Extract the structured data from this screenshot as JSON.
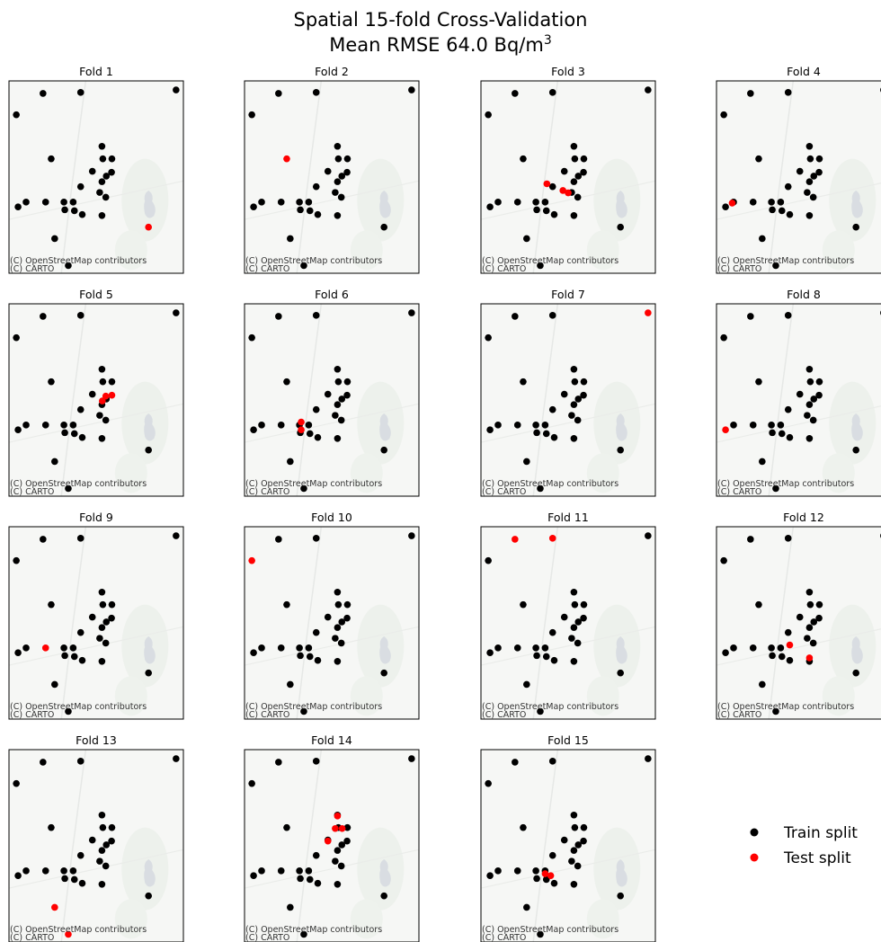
{
  "figure": {
    "title_line1": "Spatial 15-fold Cross-Validation",
    "title_line2_prefix": "Mean RMSE 64.0 Bq/m",
    "title_line2_sup": "3"
  },
  "map": {
    "attribution_line1": "(C) OpenStreetMap contributors",
    "attribution_line2": "(C) CARTO"
  },
  "legend": {
    "train_label": "Train split",
    "test_label": "Test split",
    "train_color": "#000000",
    "test_color": "#ff0000"
  },
  "chart_data": {
    "type": "scatter",
    "description_units": "points in normalized map coordinates (0-1 of panel extent)",
    "panels": [
      "Fold 1",
      "Fold 2",
      "Fold 3",
      "Fold 4",
      "Fold 5",
      "Fold 6",
      "Fold 7",
      "Fold 8",
      "Fold 9",
      "Fold 10",
      "Fold 11",
      "Fold 12",
      "Fold 13",
      "Fold 14",
      "Fold 15"
    ],
    "sites": [
      {
        "x": 0.958,
        "y": 0.953
      },
      {
        "x": 0.195,
        "y": 0.935
      },
      {
        "x": 0.411,
        "y": 0.94
      },
      {
        "x": 0.042,
        "y": 0.824
      },
      {
        "x": 0.533,
        "y": 0.66
      },
      {
        "x": 0.242,
        "y": 0.595
      },
      {
        "x": 0.538,
        "y": 0.595
      },
      {
        "x": 0.59,
        "y": 0.595
      },
      {
        "x": 0.588,
        "y": 0.525
      },
      {
        "x": 0.558,
        "y": 0.505
      },
      {
        "x": 0.478,
        "y": 0.53
      },
      {
        "x": 0.533,
        "y": 0.476
      },
      {
        "x": 0.411,
        "y": 0.45
      },
      {
        "x": 0.52,
        "y": 0.42
      },
      {
        "x": 0.555,
        "y": 0.395
      },
      {
        "x": 0.315,
        "y": 0.37
      },
      {
        "x": 0.368,
        "y": 0.37
      },
      {
        "x": 0.098,
        "y": 0.37
      },
      {
        "x": 0.21,
        "y": 0.37
      },
      {
        "x": 0.052,
        "y": 0.345
      },
      {
        "x": 0.32,
        "y": 0.33
      },
      {
        "x": 0.375,
        "y": 0.325
      },
      {
        "x": 0.42,
        "y": 0.305
      },
      {
        "x": 0.533,
        "y": 0.3
      },
      {
        "x": 0.8,
        "y": 0.24
      },
      {
        "x": 0.262,
        "y": 0.18
      },
      {
        "x": 0.34,
        "y": 0.04
      }
    ],
    "test_sites_by_fold": [
      [
        {
          "x": 0.8,
          "y": 0.24
        }
      ],
      [
        {
          "x": 0.242,
          "y": 0.595
        }
      ],
      [
        {
          "x": 0.378,
          "y": 0.465
        },
        {
          "x": 0.47,
          "y": 0.43
        },
        {
          "x": 0.5,
          "y": 0.418
        }
      ],
      [
        {
          "x": 0.09,
          "y": 0.365
        }
      ],
      [
        {
          "x": 0.555,
          "y": 0.52
        },
        {
          "x": 0.59,
          "y": 0.525
        },
        {
          "x": 0.535,
          "y": 0.495
        }
      ],
      [
        {
          "x": 0.325,
          "y": 0.385
        },
        {
          "x": 0.325,
          "y": 0.345
        }
      ],
      [
        {
          "x": 0.958,
          "y": 0.953
        }
      ],
      [
        {
          "x": 0.052,
          "y": 0.345
        }
      ],
      [
        {
          "x": 0.21,
          "y": 0.37
        }
      ],
      [
        {
          "x": 0.042,
          "y": 0.824
        }
      ],
      [
        {
          "x": 0.195,
          "y": 0.935
        },
        {
          "x": 0.411,
          "y": 0.94
        }
      ],
      [
        {
          "x": 0.42,
          "y": 0.385
        },
        {
          "x": 0.533,
          "y": 0.318
        }
      ],
      [
        {
          "x": 0.262,
          "y": 0.18
        },
        {
          "x": 0.34,
          "y": 0.04
        }
      ],
      [
        {
          "x": 0.533,
          "y": 0.655
        },
        {
          "x": 0.52,
          "y": 0.59
        },
        {
          "x": 0.56,
          "y": 0.59
        },
        {
          "x": 0.478,
          "y": 0.525
        }
      ],
      [
        {
          "x": 0.368,
          "y": 0.355
        },
        {
          "x": 0.4,
          "y": 0.345
        }
      ]
    ]
  }
}
